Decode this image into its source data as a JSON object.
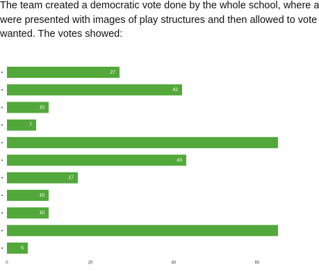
{
  "text_lines": [
    "The team created a democratic vote done by the whole school, where a",
    "were presented with images of play structures and then allowed to vote",
    "wanted. The votes showed:"
  ],
  "chart_data": {
    "type": "hbar",
    "categories": [
      null,
      null,
      null,
      null,
      null,
      null,
      null,
      null,
      null,
      null,
      null
    ],
    "values": [
      27,
      42,
      10,
      7,
      68,
      43,
      17,
      10,
      10,
      68,
      5
    ],
    "color": "#52a83a",
    "xlim": [
      0,
      65
    ],
    "xticks": [
      0,
      20,
      40,
      60
    ]
  }
}
